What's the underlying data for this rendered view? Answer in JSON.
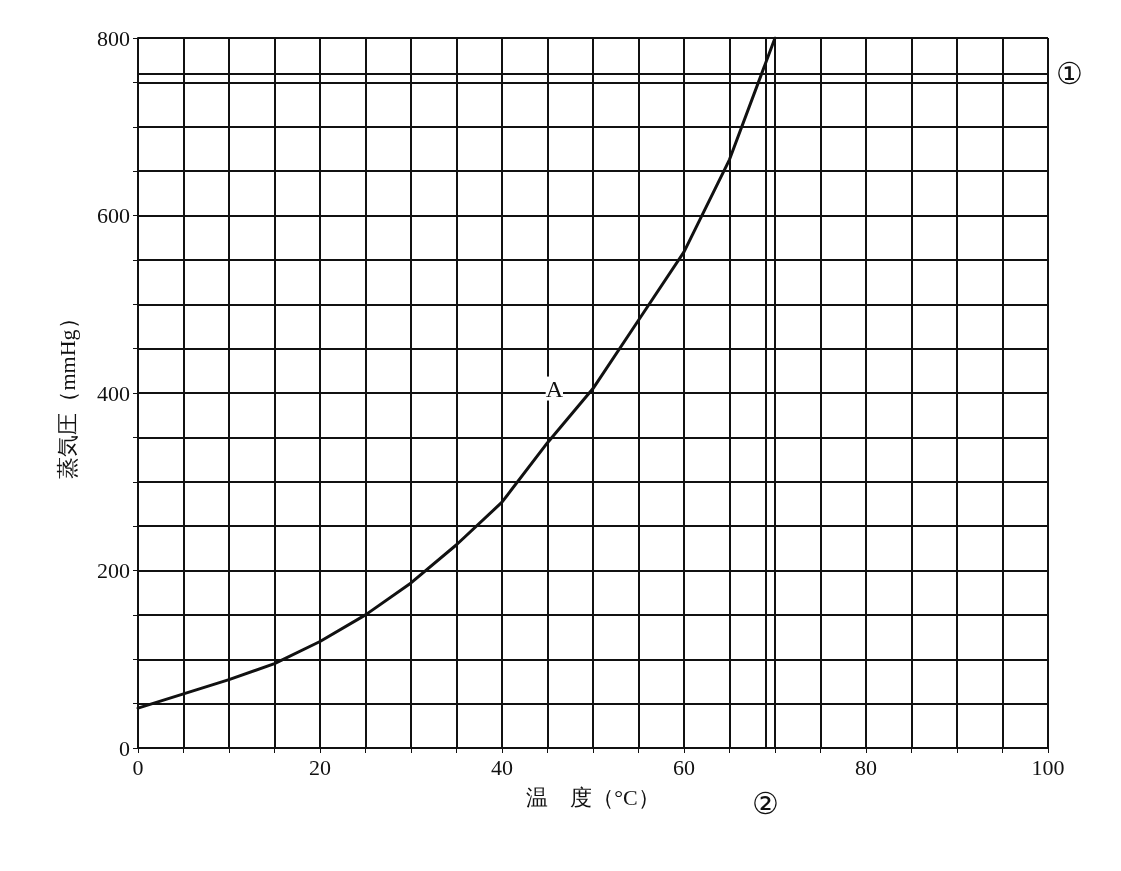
{
  "chart_data": {
    "type": "line",
    "xlabel": "温　度（°C）",
    "ylabel": "蒸気圧（mmHg）",
    "x": [
      0,
      5,
      10,
      15,
      20,
      25,
      30,
      35,
      40,
      45,
      50,
      55,
      60,
      65,
      70
    ],
    "series": [
      {
        "color": "#111111",
        "values": [
          45,
          61,
          77,
          95,
          120,
          150,
          186,
          229,
          277,
          344,
          405,
          482,
          559,
          663,
          800
        ]
      }
    ],
    "xlim": [
      0,
      100
    ],
    "xticks": [
      0,
      {
        "value": 5,
        "label": null
      },
      {
        "value": 10,
        "label": null
      },
      {
        "value": 15,
        "label": null
      },
      20,
      {
        "value": 25,
        "label": null
      },
      {
        "value": 30,
        "label": null
      },
      {
        "value": 35,
        "label": null
      },
      40,
      {
        "value": 45,
        "label": null
      },
      {
        "value": 50,
        "label": null
      },
      {
        "value": 55,
        "label": null
      },
      60,
      {
        "value": 65,
        "label": null
      },
      {
        "value": 70,
        "label": null
      },
      {
        "value": 75,
        "label": null
      },
      80,
      {
        "value": 85,
        "label": null
      },
      {
        "value": 90,
        "label": null
      },
      {
        "value": 95,
        "label": null
      },
      100
    ],
    "ylim": [
      0,
      800
    ],
    "yticks": [
      0,
      {
        "value": 50,
        "label": null
      },
      {
        "value": 100,
        "label": null
      },
      {
        "value": 150,
        "label": null
      },
      200,
      {
        "value": 250,
        "label": null
      },
      {
        "value": 300,
        "label": null
      },
      {
        "value": 350,
        "label": null
      },
      400,
      {
        "value": 450,
        "label": null
      },
      {
        "value": 500,
        "label": null
      },
      {
        "value": 550,
        "label": null
      },
      600,
      {
        "value": 650,
        "label": null
      },
      {
        "value": 700,
        "label": null
      },
      {
        "value": 750,
        "label": null
      },
      800
    ],
    "grid": true,
    "marker": "none",
    "line_style": "solid",
    "annotations": [
      {
        "text": "A",
        "x": 50,
        "y": 405
      }
    ],
    "ref_lines": [
      {
        "axis": "y",
        "value": 760,
        "label": "①"
      },
      {
        "axis": "x",
        "value": 69,
        "label": "②"
      }
    ]
  }
}
